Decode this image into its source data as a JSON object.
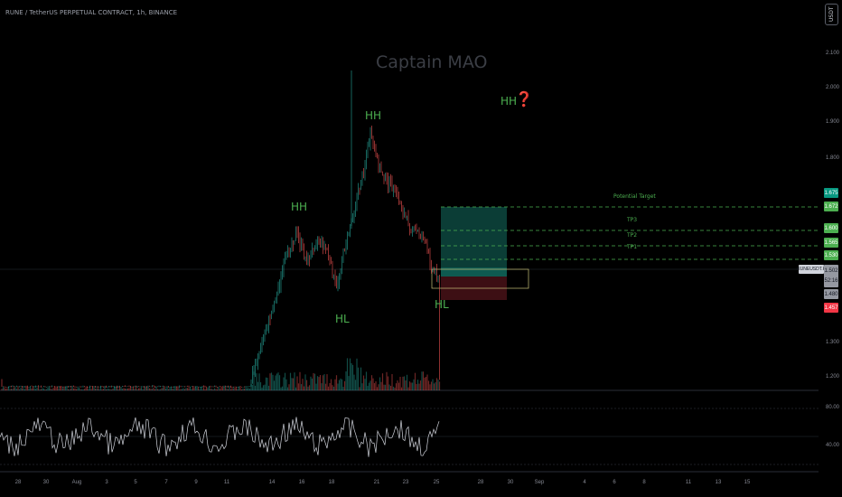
{
  "header": {
    "symbol_line": "RUNE / TetherUS PERPETUAL CONTRACT, 1h, BINANCE",
    "currency": "USDT",
    "watermark": "Captain MAO"
  },
  "colors": {
    "background": "#000000",
    "up": "#26a69a",
    "down": "#ef5350",
    "label_green": "#4caf50",
    "target_zone": "#0b3d36",
    "stop_zone": "#3d0f14",
    "rsi_line": "#d1d4dc"
  },
  "price_axis": {
    "ticks": [
      "2.100",
      "2.000",
      "1.900",
      "1.800",
      "1.300",
      "1.200"
    ],
    "rsi_ticks": [
      "80.00",
      "40.00"
    ]
  },
  "price_badges": {
    "b1675": "1.675",
    "b1672": "1.672",
    "b1600": "1.600",
    "b1565": "1.565",
    "b1530": "1.530",
    "current": "1.502",
    "countdown": "52:16",
    "b1480": "1.480",
    "b1457": "1.457",
    "ticker": "RUNEUSDT.P"
  },
  "annotations": {
    "hh_left": "HH",
    "hh_top": "HH",
    "hh_future": "HH",
    "question": "❓",
    "hl_left": "HL",
    "hl_right": "HL",
    "potential_target": "Potential Target",
    "tp3": "TP3",
    "tp2": "TP2",
    "tp1": "TP1"
  },
  "time_axis": {
    "labels": [
      "28",
      "30",
      "Aug",
      "3",
      "5",
      "7",
      "9",
      "11",
      "14",
      "16",
      "18",
      "21",
      "23",
      "25",
      "28",
      "30",
      "Sep",
      "4",
      "6",
      "8",
      "11",
      "13",
      "15"
    ]
  }
}
